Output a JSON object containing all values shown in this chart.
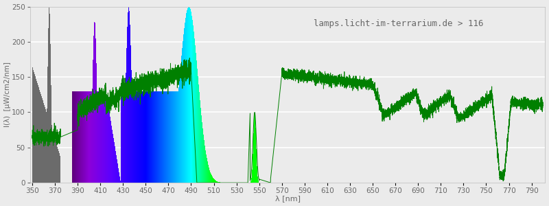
{
  "title": "lamps.licht-im-terrarium.de > 116",
  "xlabel": "λ [nm]",
  "ylabel": "I(λ)  [µW/cm2/nm]",
  "xlim": [
    348,
    802
  ],
  "ylim": [
    0,
    250
  ],
  "yticks": [
    0,
    50,
    100,
    150,
    200,
    250
  ],
  "xticks": [
    350,
    370,
    390,
    410,
    430,
    450,
    470,
    490,
    510,
    530,
    550,
    570,
    590,
    610,
    630,
    650,
    670,
    690,
    710,
    730,
    750,
    770,
    790
  ],
  "bg_color": "#ebebeb",
  "plot_bg_color": "#ebebeb",
  "line_color": "#008000",
  "title_color": "#666666",
  "axis_label_color": "#666666",
  "title_fontsize": 9,
  "axis_label_fontsize": 8,
  "tick_fontsize": 7.5,
  "figwidth": 8.0,
  "figheight": 3.0,
  "dpi": 100
}
